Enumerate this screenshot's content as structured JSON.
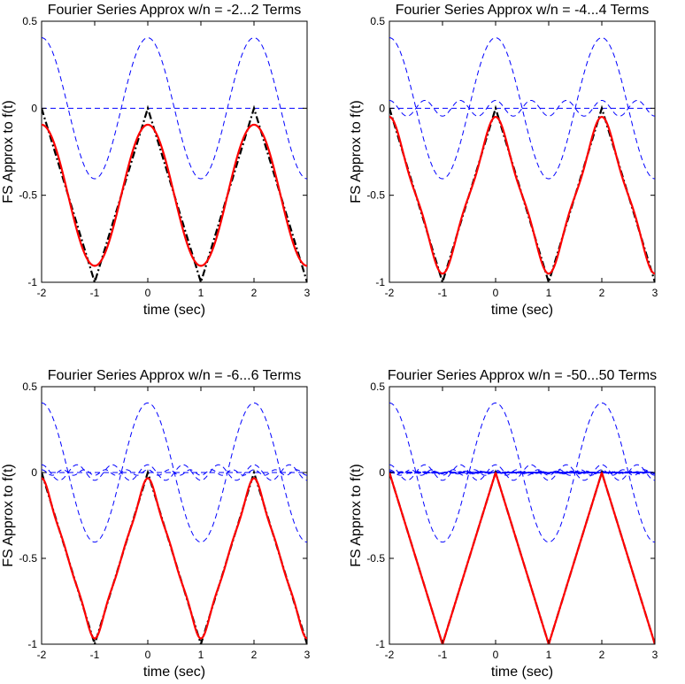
{
  "chart_data": [
    {
      "type": "line",
      "title": "Fourier Series Approx w/n = -2...2 Terms",
      "xlabel": "time (sec)",
      "ylabel": "FS Approx to f(t)",
      "xlim": [
        -2,
        3
      ],
      "ylim": [
        -1,
        0.5
      ],
      "xticks": [
        "-2",
        "-1",
        "0",
        "1",
        "2",
        "3"
      ],
      "yticks": [
        "-1",
        "-0.5",
        "0",
        "0.5"
      ],
      "grid": false,
      "N": 2,
      "series": [
        {
          "style": "dash-dot",
          "color": "#000000",
          "x": [
            -2,
            -1,
            0,
            1,
            2,
            3
          ],
          "values": [
            0,
            -1,
            0,
            -1,
            0,
            -1
          ]
        },
        {
          "style": "dashed",
          "color": "#0000ff",
          "x": [
            -2,
            -1,
            0,
            1,
            2,
            3
          ],
          "values": [
            0.405,
            -0.405,
            0.405,
            -0.405,
            0.405,
            -0.405
          ]
        },
        {
          "style": "dashed",
          "color": "#0000ff",
          "x": [
            -2,
            3
          ],
          "values": [
            0,
            0
          ]
        },
        {
          "style": "solid",
          "color": "#ff0000",
          "x": [
            -2,
            -1,
            0,
            1,
            2,
            3
          ],
          "values": [
            -0.095,
            -0.905,
            -0.095,
            -0.905,
            -0.095,
            -0.905
          ]
        }
      ]
    },
    {
      "type": "line",
      "title": "Fourier Series Approx w/n = -4...4 Terms",
      "xlabel": "time (sec)",
      "ylabel": "FS Approx to f(t)",
      "xlim": [
        -2,
        3
      ],
      "ylim": [
        -1,
        0.5
      ],
      "xticks": [
        "-2",
        "-1",
        "0",
        "1",
        "2",
        "3"
      ],
      "yticks": [
        "-1",
        "-0.5",
        "0",
        "0.5"
      ],
      "grid": false,
      "N": 4,
      "series": [
        {
          "style": "dash-dot",
          "color": "#000000",
          "x": [
            -2,
            -1,
            0,
            1,
            2,
            3
          ],
          "values": [
            0,
            -1,
            0,
            -1,
            0,
            -1
          ]
        },
        {
          "style": "dashed",
          "color": "#0000ff",
          "x": [
            -2,
            -1,
            0,
            1,
            2,
            3
          ],
          "values": [
            0.405,
            -0.405,
            0.405,
            -0.405,
            0.405,
            -0.405
          ]
        },
        {
          "style": "dashed",
          "color": "#0000ff",
          "x": [
            -2,
            3
          ],
          "values": [
            0.045,
            0.045
          ]
        },
        {
          "style": "solid",
          "color": "#ff0000",
          "x": [
            -2,
            -1,
            0,
            1,
            2,
            3
          ],
          "values": [
            -0.05,
            -0.95,
            -0.05,
            -0.95,
            -0.05,
            -0.95
          ]
        }
      ]
    },
    {
      "type": "line",
      "title": "Fourier Series Approx w/n = -6...6 Terms",
      "xlabel": "time (sec)",
      "ylabel": "FS Approx to f(t)",
      "xlim": [
        -2,
        3
      ],
      "ylim": [
        -1,
        0.5
      ],
      "xticks": [
        "-2",
        "-1",
        "0",
        "1",
        "2",
        "3"
      ],
      "yticks": [
        "-1",
        "-0.5",
        "0",
        "0.5"
      ],
      "grid": false,
      "N": 6,
      "series": [
        {
          "style": "dash-dot",
          "color": "#000000",
          "x": [
            -2,
            -1,
            0,
            1,
            2,
            3
          ],
          "values": [
            0,
            -1,
            0,
            -1,
            0,
            -1
          ]
        },
        {
          "style": "dashed",
          "color": "#0000ff",
          "x": [
            -2,
            -1,
            0,
            1,
            2,
            3
          ],
          "values": [
            0.405,
            -0.405,
            0.405,
            -0.405,
            0.405,
            -0.405
          ]
        },
        {
          "style": "dashed",
          "color": "#0000ff",
          "x": [
            -2,
            3
          ],
          "values": [
            0.045,
            0.045
          ]
        },
        {
          "style": "solid",
          "color": "#ff0000",
          "x": [
            -2,
            -1,
            0,
            1,
            2,
            3
          ],
          "values": [
            -0.035,
            -0.965,
            -0.035,
            -0.965,
            -0.035,
            -0.965
          ]
        }
      ]
    },
    {
      "type": "line",
      "title": "Fourier Series Approx w/n = -50...50 Terms",
      "xlabel": "time (sec)",
      "ylabel": "FS Approx to f(t)",
      "xlim": [
        -2,
        3
      ],
      "ylim": [
        -1,
        0.5
      ],
      "xticks": [
        "-2",
        "-1",
        "0",
        "1",
        "2",
        "3"
      ],
      "yticks": [
        "-1",
        "-0.5",
        "0",
        "0.5"
      ],
      "grid": false,
      "N": 50,
      "series": [
        {
          "style": "dash-dot",
          "color": "#000000",
          "x": [
            -2,
            -1,
            0,
            1,
            2,
            3
          ],
          "values": [
            0,
            -1,
            0,
            -1,
            0,
            -1
          ]
        },
        {
          "style": "dashed",
          "color": "#0000ff",
          "x": [
            -2,
            -1,
            0,
            1,
            2,
            3
          ],
          "values": [
            0.405,
            -0.405,
            0.405,
            -0.405,
            0.405,
            -0.405
          ]
        },
        {
          "style": "dashed",
          "color": "#0000ff",
          "x": [
            -2,
            3
          ],
          "values": [
            0.045,
            0.045
          ]
        },
        {
          "style": "solid",
          "color": "#ff0000",
          "x": [
            -2,
            -1,
            0,
            1,
            2,
            3
          ],
          "values": [
            -0.004,
            -0.996,
            -0.004,
            -0.996,
            -0.004,
            -0.996
          ]
        }
      ]
    }
  ]
}
